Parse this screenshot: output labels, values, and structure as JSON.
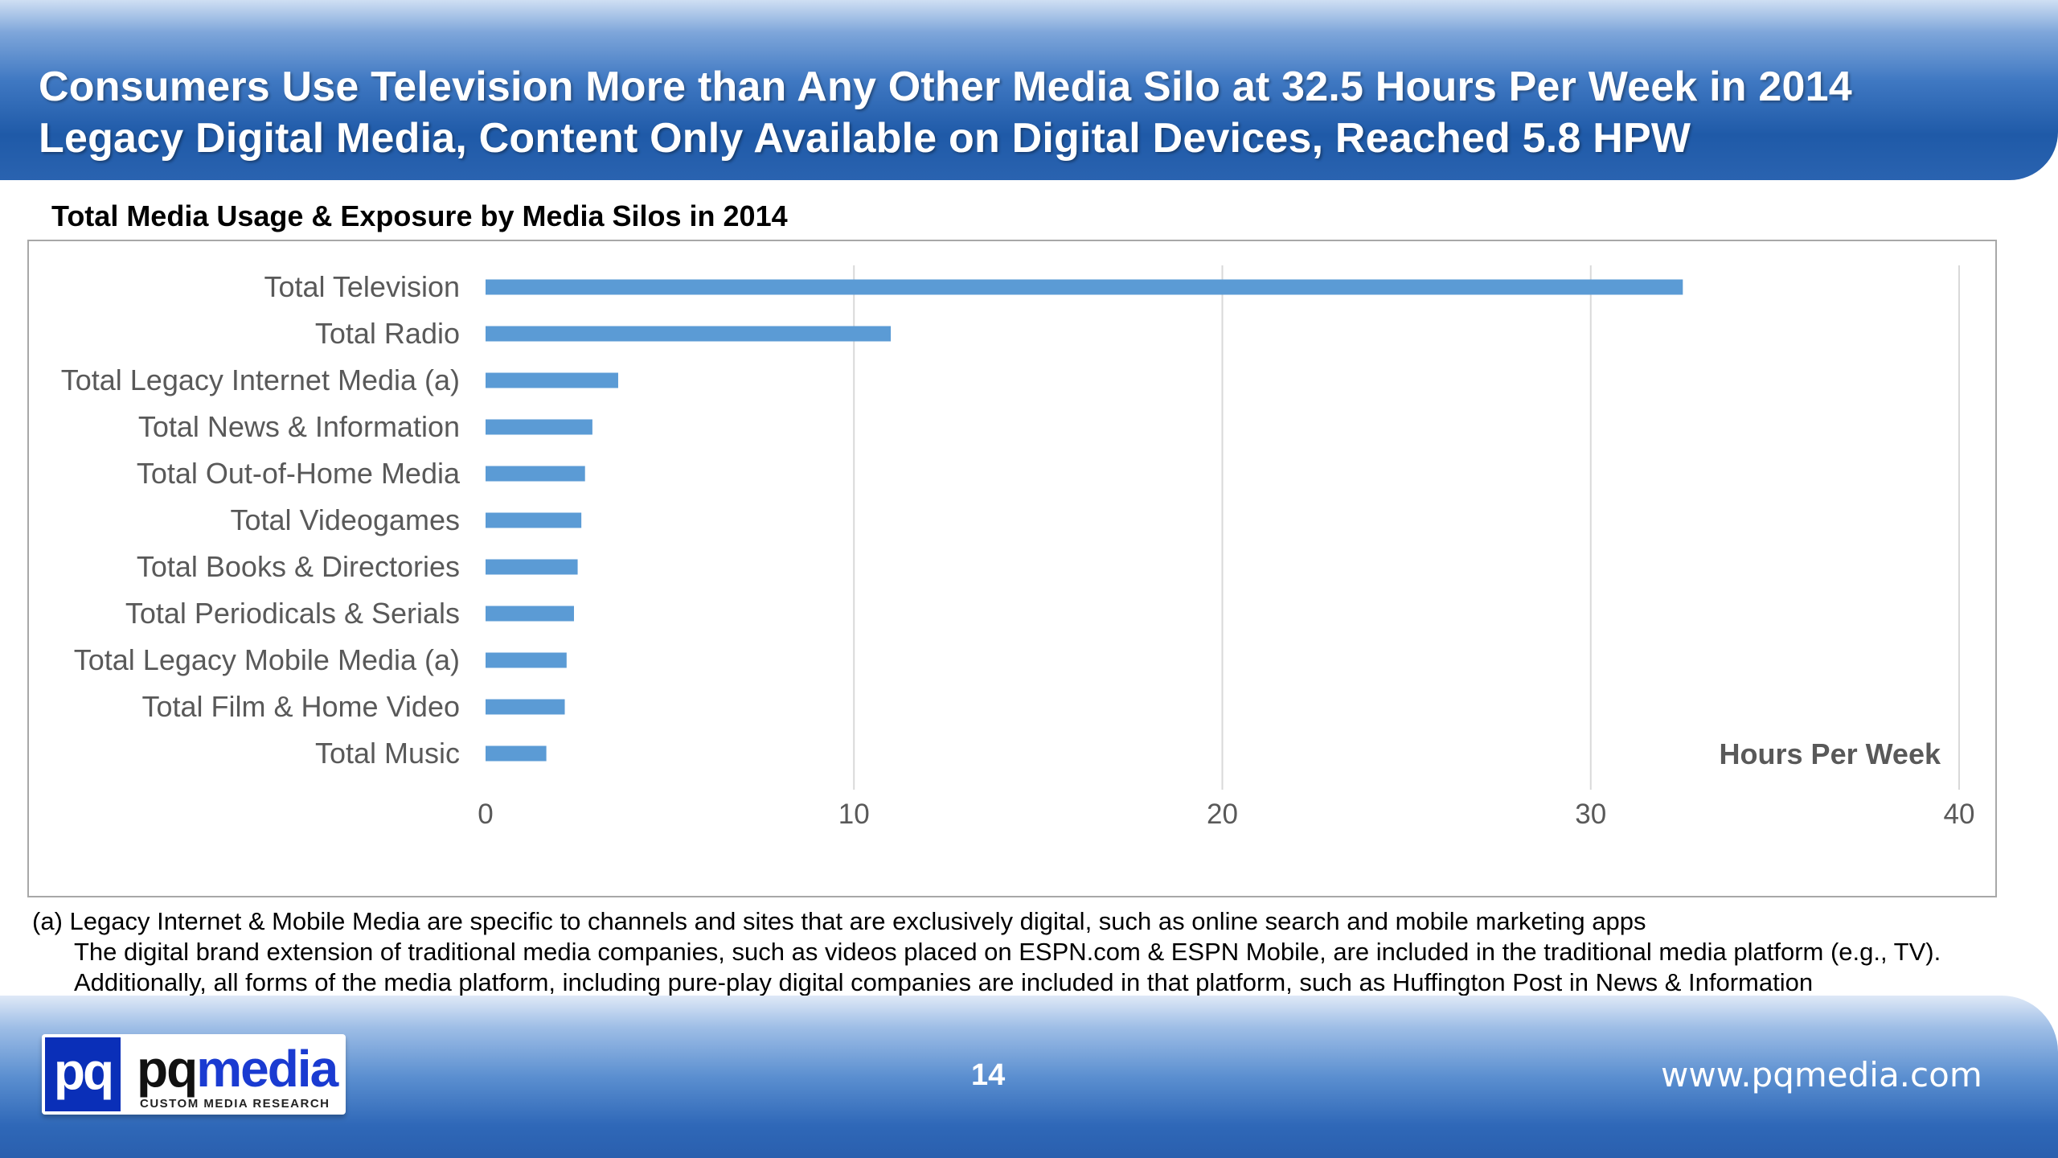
{
  "header": {
    "line1": "Consumers Use Television More than Any Other Media Silo at 32.5 Hours Per Week in 2014",
    "line2": "Legacy Digital Media, Content Only Available on Digital Devices, Reached 5.8 HPW"
  },
  "subtitle": "Total Media Usage & Exposure by Media Silos in 2014",
  "chart_data": {
    "type": "bar",
    "orientation": "horizontal",
    "title": "Total Media Usage & Exposure by Media Silos in 2014",
    "xlabel": "Hours Per Week",
    "ylabel": "",
    "xlim": [
      0,
      40
    ],
    "xticks": [
      0,
      10,
      20,
      30,
      40
    ],
    "grid": true,
    "bar_color": "#5b9bd5",
    "categories": [
      "Total Television",
      "Total Radio",
      "Total Legacy Internet Media (a)",
      "Total News & Information",
      "Total Out-of-Home Media",
      "Total Videogames",
      "Total Books & Directories",
      "Total Periodicals & Serials",
      "Total Legacy Mobile Media (a)",
      "Total Film & Home Video",
      "Total Music"
    ],
    "values": [
      32.5,
      11.0,
      3.6,
      2.9,
      2.7,
      2.6,
      2.5,
      2.4,
      2.2,
      2.15,
      1.65
    ]
  },
  "footnotes": {
    "line1": "(a) Legacy Internet & Mobile Media are specific to channels and sites that are exclusively digital, such as online search and mobile marketing apps",
    "line2": "The digital brand extension of traditional media companies, such as videos placed on ESPN.com & ESPN Mobile, are included in the traditional media platform (e.g., TV).",
    "line3": "Additionally, all forms of the media platform, including pure-play digital companies are included in that platform, such as Huffington Post in News & Information"
  },
  "footer": {
    "logo_mark": "pq",
    "logo_pq": "pq",
    "logo_media": "media",
    "logo_tagline": "CUSTOM MEDIA RESEARCH",
    "page_number": "14",
    "website": "www.pqmedia.com"
  }
}
